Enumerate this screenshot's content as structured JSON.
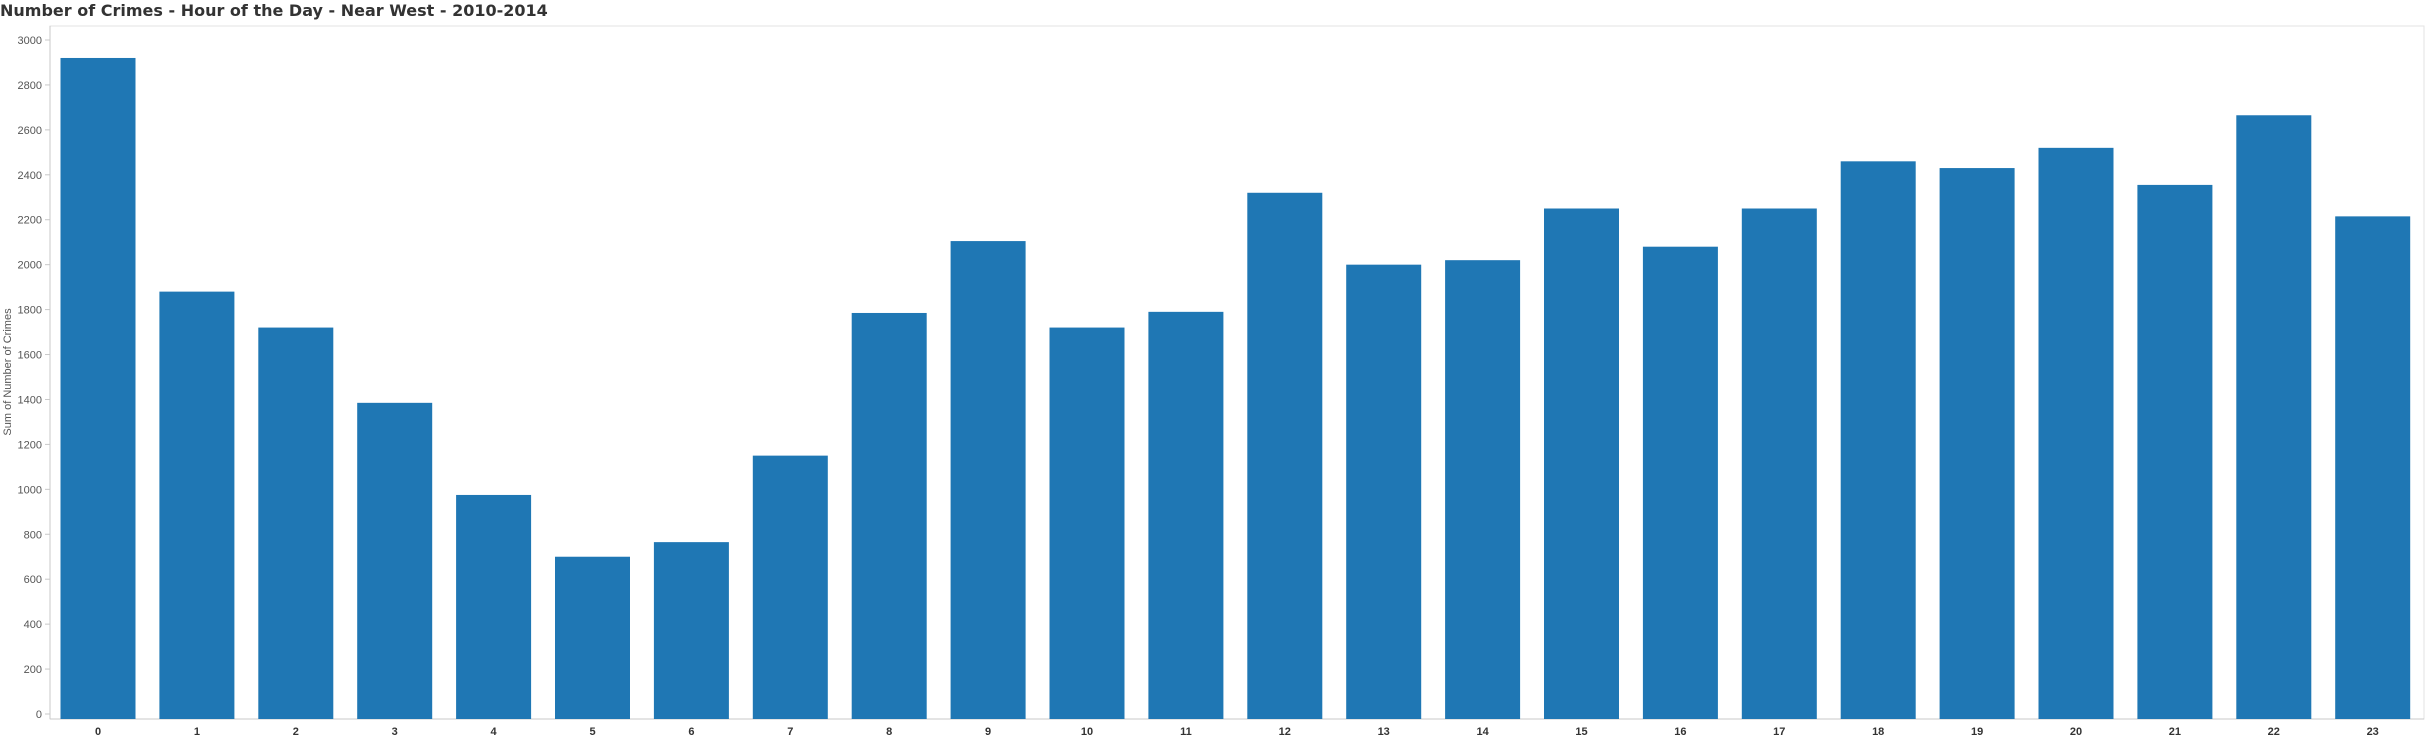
{
  "chart_data": {
    "type": "bar",
    "title": "Number of Crimes - Hour of the Day - Near West - 2010-2014",
    "xlabel": "",
    "ylabel": "Sum of Number of Crimes",
    "categories": [
      "0",
      "1",
      "2",
      "3",
      "4",
      "5",
      "6",
      "7",
      "8",
      "9",
      "10",
      "11",
      "12",
      "13",
      "14",
      "15",
      "16",
      "17",
      "18",
      "19",
      "20",
      "21",
      "22",
      "23"
    ],
    "values": [
      2920,
      1880,
      1720,
      1385,
      975,
      700,
      765,
      1150,
      1785,
      2105,
      1720,
      1790,
      2320,
      2000,
      2020,
      2250,
      2080,
      2250,
      2460,
      2430,
      2520,
      2355,
      2665,
      2215
    ],
    "ylim": [
      0,
      3000
    ],
    "yticks": [
      0,
      200,
      400,
      600,
      800,
      1000,
      1200,
      1400,
      1600,
      1800,
      2000,
      2200,
      2400,
      2600,
      2800,
      3000
    ],
    "bar_color": "#1f77b4",
    "gridlines": false,
    "legend": "none"
  }
}
